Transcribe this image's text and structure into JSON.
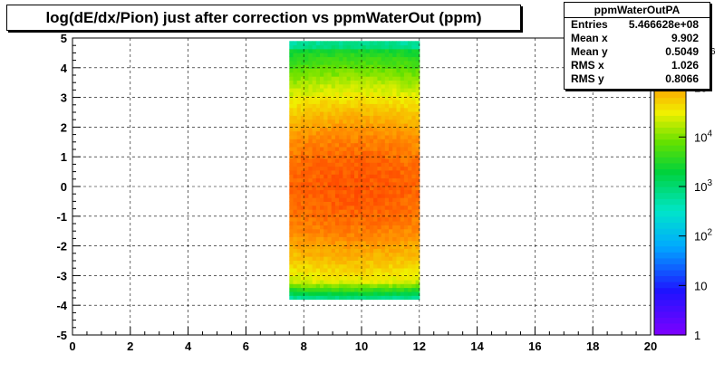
{
  "title": "log(dE/dx/Pion) just after correction vs ppmWaterOut (ppm)",
  "stats": {
    "name": "ppmWaterOutPA",
    "rows": [
      {
        "label": "Entries",
        "value": "5.466628e+08"
      },
      {
        "label": "Mean x",
        "value": "9.902"
      },
      {
        "label": "Mean y",
        "value": "0.5049"
      },
      {
        "label": "RMS x",
        "value": "1.026"
      },
      {
        "label": "RMS y",
        "value": "0.8066"
      }
    ]
  },
  "colors": {
    "palette_low": "#7f00ff",
    "palette_high": "#ff0000",
    "frame": "#000000",
    "grid": "#000000"
  },
  "chart_data": {
    "type": "heatmap",
    "title": "log(dE/dx/Pion) just after correction vs ppmWaterOut (ppm)",
    "xlabel": "",
    "ylabel": "",
    "xlim": [
      0,
      20
    ],
    "ylim": [
      -5,
      5
    ],
    "x_ticks": [
      "0",
      "2",
      "4",
      "6",
      "8",
      "10",
      "12",
      "14",
      "16",
      "18",
      "20"
    ],
    "y_ticks": [
      "-5",
      "-4",
      "-3",
      "-2",
      "-1",
      "0",
      "1",
      "2",
      "3",
      "4",
      "5"
    ],
    "grid": true,
    "colorbar": {
      "scale": "log",
      "range": [
        1,
        1000000
      ],
      "ticks": [
        {
          "value": 1,
          "label": "1"
        },
        {
          "value": 10,
          "label": "10"
        },
        {
          "value": 100,
          "label": "10",
          "exp": "2"
        },
        {
          "value": 1000,
          "label": "10",
          "exp": "3"
        },
        {
          "value": 10000,
          "label": "10",
          "exp": "4"
        },
        {
          "value": 100000,
          "label": "10",
          "exp": "5"
        },
        {
          "value": 1000000,
          "label": "",
          "exp": "6"
        }
      ]
    },
    "x_bin_edges": [
      7.5,
      12.0
    ],
    "y_range_populated": [
      -3.8,
      4.9
    ],
    "peak": {
      "x": 10.0,
      "y": 0.0,
      "value": 300000
    },
    "core_region": {
      "x": [
        7.5,
        11.8
      ],
      "y": [
        -1.0,
        2.0
      ],
      "value_approx": 100000
    }
  }
}
